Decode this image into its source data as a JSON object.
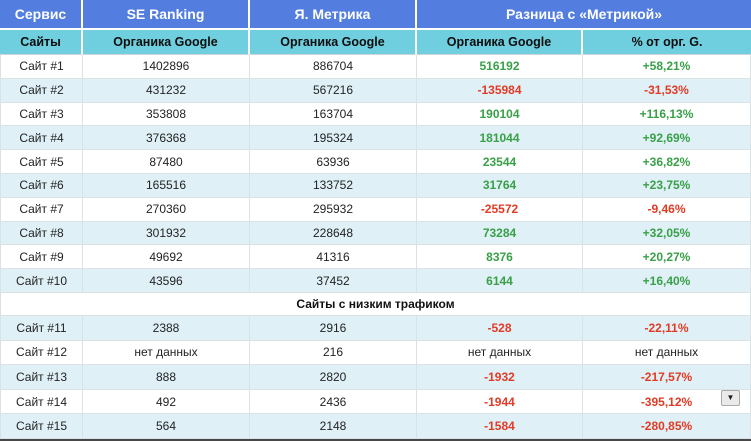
{
  "chart_data": {
    "type": "table",
    "header_groups": [
      "Сервис",
      "SE Ranking",
      "Я. Метрика",
      "Разница с «Метрикой»"
    ],
    "columns": [
      "Сайты",
      "Органика Google",
      "Органика Google",
      "Органика Google",
      "% от орг. G."
    ],
    "section_label": "Сайты с низким трафиком",
    "rows_top": [
      {
        "site": "Сайт #1",
        "se_ranking": "1402896",
        "metrika": "886704",
        "diff": "516192",
        "pct": "+58,21%",
        "trend": "up"
      },
      {
        "site": "Сайт #2",
        "se_ranking": "431232",
        "metrika": "567216",
        "diff": "-135984",
        "pct": "-31,53%",
        "trend": "down"
      },
      {
        "site": "Сайт #3",
        "se_ranking": "353808",
        "metrika": "163704",
        "diff": "190104",
        "pct": "+116,13%",
        "trend": "up"
      },
      {
        "site": "Сайт #4",
        "se_ranking": "376368",
        "metrika": "195324",
        "diff": "181044",
        "pct": "+92,69%",
        "trend": "up"
      },
      {
        "site": "Сайт #5",
        "se_ranking": "87480",
        "metrika": "63936",
        "diff": "23544",
        "pct": "+36,82%",
        "trend": "up"
      },
      {
        "site": "Сайт #6",
        "se_ranking": "165516",
        "metrika": "133752",
        "diff": "31764",
        "pct": "+23,75%",
        "trend": "up"
      },
      {
        "site": "Сайт #7",
        "se_ranking": "270360",
        "metrika": "295932",
        "diff": "-25572",
        "pct": "-9,46%",
        "trend": "down"
      },
      {
        "site": "Сайт #8",
        "se_ranking": "301932",
        "metrika": "228648",
        "diff": "73284",
        "pct": "+32,05%",
        "trend": "up"
      },
      {
        "site": "Сайт #9",
        "se_ranking": "49692",
        "metrika": "41316",
        "diff": "8376",
        "pct": "+20,27%",
        "trend": "up"
      },
      {
        "site": "Сайт #10",
        "se_ranking": "43596",
        "metrika": "37452",
        "diff": "6144",
        "pct": "+16,40%",
        "trend": "up"
      }
    ],
    "rows_low": [
      {
        "site": "Сайт #11",
        "se_ranking": "2388",
        "metrika": "2916",
        "diff": "-528",
        "pct": "-22,11%",
        "trend": "down"
      },
      {
        "site": "Сайт #12",
        "se_ranking": "нет данных",
        "metrika": "216",
        "diff": "нет данных",
        "pct": "нет данных",
        "trend": "none"
      },
      {
        "site": "Сайт #13",
        "se_ranking": "888",
        "metrika": "2820",
        "diff": "-1932",
        "pct": "-217,57%",
        "trend": "down"
      },
      {
        "site": "Сайт #14",
        "se_ranking": "492",
        "metrika": "2436",
        "diff": "-1944",
        "pct": "-395,12%",
        "trend": "down"
      },
      {
        "site": "Сайт #15",
        "se_ranking": "564",
        "metrika": "2148",
        "diff": "-1584",
        "pct": "-280,85%",
        "trend": "down"
      }
    ]
  },
  "ui": {
    "icons": {
      "dropdown": "▼"
    },
    "colors": {
      "header_blue": "#537ee0",
      "header_teal": "#6fcfdf",
      "row_alt": "#dff0f7",
      "positive_green": "#39a047",
      "negative_red": "#e23b25",
      "grid": "#dbe2e6"
    }
  }
}
